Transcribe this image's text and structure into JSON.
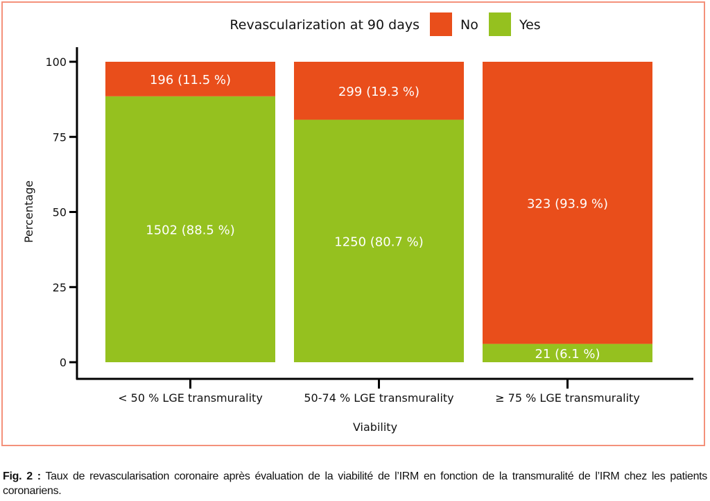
{
  "chart_data": {
    "type": "bar",
    "stacked": true,
    "legend_title": "Revascularization at 90 days",
    "legend_position": "top",
    "categories": [
      "< 50 % LGE transmurality",
      "50-74 % LGE transmurality",
      "≥ 75 % LGE transmurality"
    ],
    "series": [
      {
        "name": "Yes",
        "color": "#95c11f",
        "values": [
          88.5,
          80.7,
          6.1
        ],
        "labels": [
          "1502 (88.5 %)",
          "1250 (80.7 %)",
          "21 (6.1 %)"
        ]
      },
      {
        "name": "No",
        "color": "#e94e1b",
        "values": [
          11.5,
          19.3,
          93.9
        ],
        "labels": [
          "196 (11.5 %)",
          "299 (19.3 %)",
          "323 (93.9 %)"
        ]
      }
    ],
    "xlabel": "Viability",
    "ylabel": "Percentage",
    "ylim": [
      0,
      100
    ],
    "yticks": [
      0,
      25,
      50,
      75,
      100
    ],
    "grid": false
  },
  "caption": {
    "label": "Fig. 2 :",
    "text": "Taux de revascularisation coronaire après évaluation de la viabilité de l’IRM en fonction de la transmuralité de l’IRM chez les patients coronariens."
  }
}
